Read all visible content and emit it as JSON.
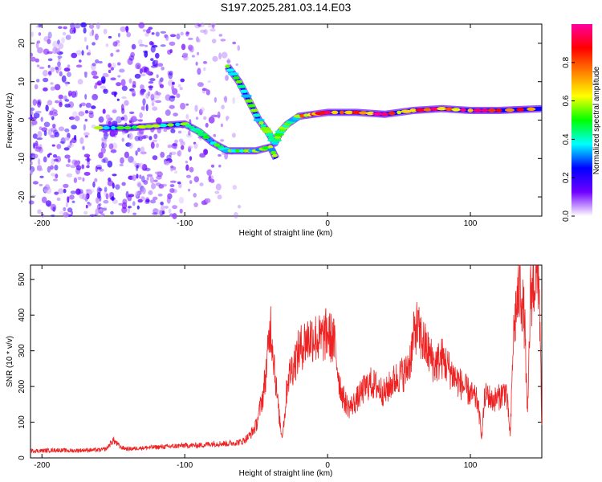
{
  "title": "S197.2025.281.03.14.E03",
  "chart_data": [
    {
      "type": "heatmap",
      "xlabel": "Height of straight line (km)",
      "ylabel": "Frequency (Hz)",
      "xlim": [
        -208,
        150
      ],
      "ylim": [
        -25,
        25
      ],
      "xticks": [
        -200,
        -100,
        0,
        100
      ],
      "yticks": [
        -20,
        -10,
        0,
        10,
        20
      ],
      "colorbar": {
        "label": "Normalized spectral amplitude",
        "range": [
          0,
          1
        ],
        "ticks": [
          "0.0",
          "0.2",
          "0.4",
          "0.6",
          "0.8"
        ],
        "tick_values": [
          0,
          0.2,
          0.4,
          0.6,
          0.8
        ],
        "colors": [
          "#ffffff",
          "#7000ff",
          "#0000ff",
          "#00ffff",
          "#00ff00",
          "#ffff00",
          "#ff8000",
          "#ff0000",
          "#ff00a0"
        ]
      },
      "ridges": [
        {
          "name": "upper-track",
          "points": [
            [
              -70,
              14
            ],
            [
              -62,
              10
            ],
            [
              -55,
              5
            ],
            [
              -48,
              0
            ],
            [
              -42,
              -3
            ],
            [
              -37,
              -6
            ],
            [
              -33,
              -3
            ],
            [
              -28,
              -1
            ],
            [
              -20,
              1
            ],
            [
              -10,
              1.5
            ],
            [
              0,
              2
            ],
            [
              20,
              2
            ],
            [
              40,
              1.5
            ],
            [
              60,
              2.5
            ],
            [
              80,
              3
            ],
            [
              100,
              2.5
            ],
            [
              120,
              2.5
            ],
            [
              150,
              3
            ]
          ]
        },
        {
          "name": "lower-track",
          "points": [
            [
              -160,
              -2
            ],
            [
              -140,
              -2
            ],
            [
              -120,
              -1.5
            ],
            [
              -100,
              -1
            ],
            [
              -90,
              -3
            ],
            [
              -80,
              -6
            ],
            [
              -70,
              -8
            ],
            [
              -60,
              -8
            ],
            [
              -50,
              -8
            ],
            [
              -40,
              -7
            ],
            [
              -36,
              -10
            ]
          ]
        }
      ]
    },
    {
      "type": "line",
      "xlabel": "Height of straight line (km)",
      "ylabel": "SNR (10 * v/v)",
      "xlim": [
        -208,
        150
      ],
      "ylim": [
        0,
        540
      ],
      "xticks": [
        -200,
        -100,
        0,
        100
      ],
      "yticks": [
        0,
        100,
        200,
        300,
        400,
        500
      ],
      "series": [
        {
          "name": "SNR",
          "color": "#ee2222",
          "x": [
            -208,
            -200,
            -190,
            -180,
            -170,
            -160,
            -155,
            -150,
            -145,
            -140,
            -130,
            -120,
            -110,
            -100,
            -90,
            -80,
            -70,
            -60,
            -55,
            -50,
            -45,
            -42,
            -40,
            -38,
            -36,
            -34,
            -32,
            -30,
            -28,
            -25,
            -20,
            -15,
            -10,
            -5,
            0,
            5,
            8,
            10,
            12,
            15,
            20,
            25,
            30,
            35,
            40,
            45,
            50,
            55,
            58,
            60,
            62,
            65,
            70,
            75,
            80,
            85,
            90,
            95,
            100,
            105,
            108,
            110,
            112,
            115,
            120,
            125,
            128,
            130,
            132,
            135,
            138,
            140,
            142,
            145,
            148,
            150
          ],
          "y": [
            20,
            20,
            22,
            20,
            22,
            22,
            25,
            50,
            30,
            25,
            28,
            30,
            32,
            35,
            35,
            40,
            40,
            45,
            60,
            90,
            180,
            280,
            380,
            300,
            200,
            120,
            60,
            120,
            220,
            250,
            300,
            330,
            340,
            330,
            350,
            320,
            220,
            180,
            160,
            140,
            160,
            190,
            210,
            200,
            180,
            210,
            230,
            240,
            280,
            330,
            370,
            340,
            300,
            260,
            280,
            250,
            220,
            200,
            180,
            160,
            60,
            170,
            180,
            160,
            170,
            190,
            60,
            330,
            420,
            480,
            380,
            100,
            450,
            500,
            520,
            80
          ]
        }
      ]
    }
  ]
}
